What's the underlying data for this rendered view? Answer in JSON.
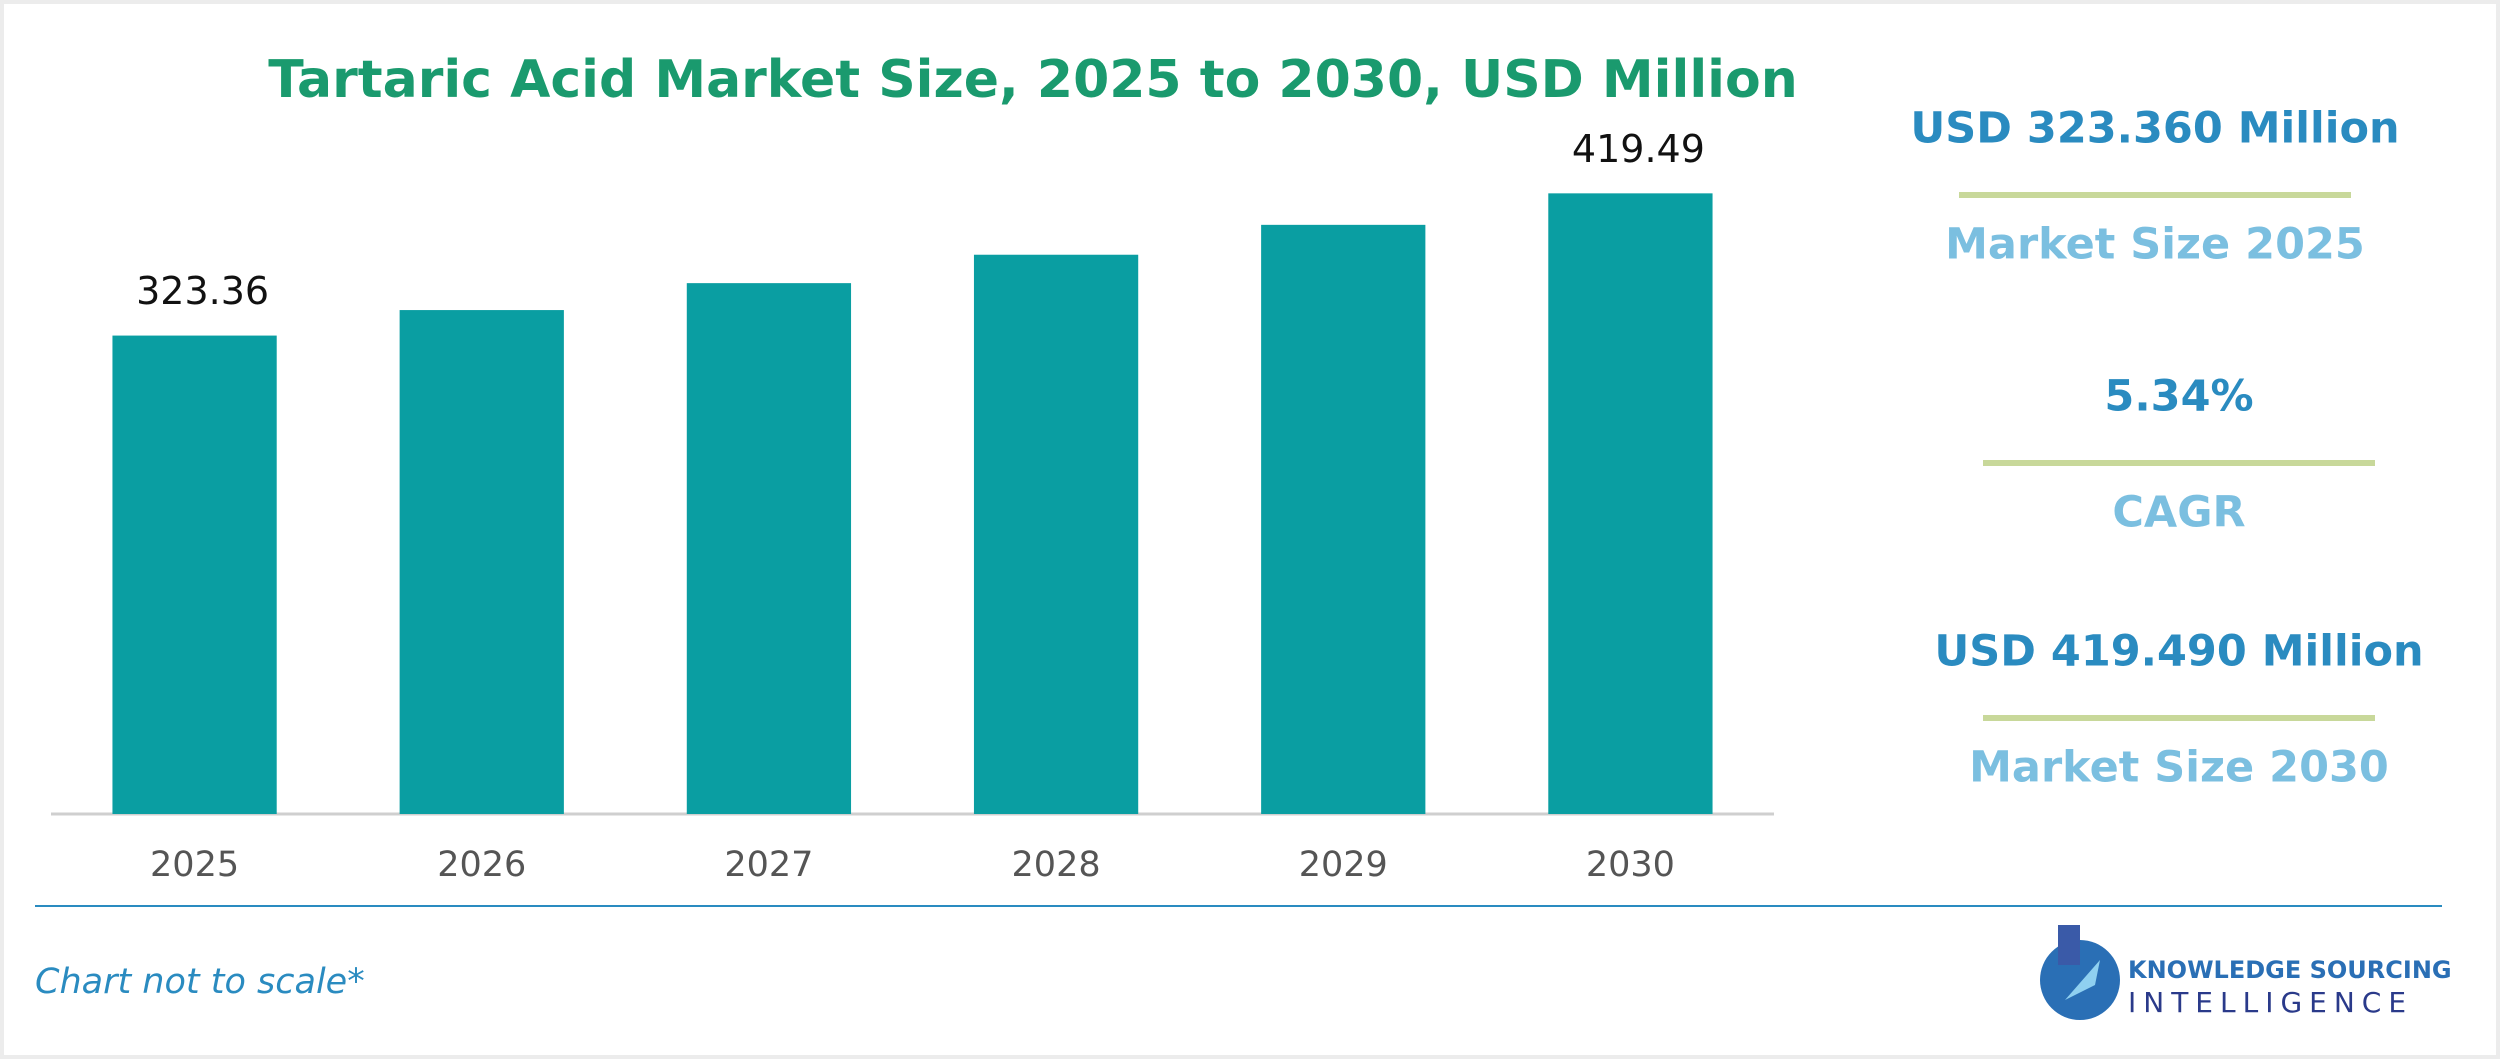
{
  "chart_data": {
    "type": "bar",
    "title": "Tartaric Acid Market Size, 2025 to 2030, USD Million",
    "categories": [
      "2025",
      "2026",
      "2027",
      "2028",
      "2029",
      "2030"
    ],
    "values": [
      323.36,
      340.6,
      358.8,
      378.0,
      398.2,
      419.49
    ],
    "value_labels": [
      "323.36",
      null,
      null,
      null,
      null,
      "419.49"
    ],
    "color": "#0a9ea2",
    "ylim": [
      0,
      440
    ]
  },
  "summary": {
    "items": [
      {
        "value": "USD 323.360 Million",
        "label": "Market Size 2025"
      },
      {
        "value": "5.34%",
        "label": "CAGR"
      },
      {
        "value": "USD 419.490 Million",
        "label": "Market Size 2030"
      }
    ]
  },
  "footnote": "Chart not to scale*",
  "logo": {
    "line1": "KNOWLEDGE SOURCING",
    "line2": "INTELLIGENCE"
  }
}
